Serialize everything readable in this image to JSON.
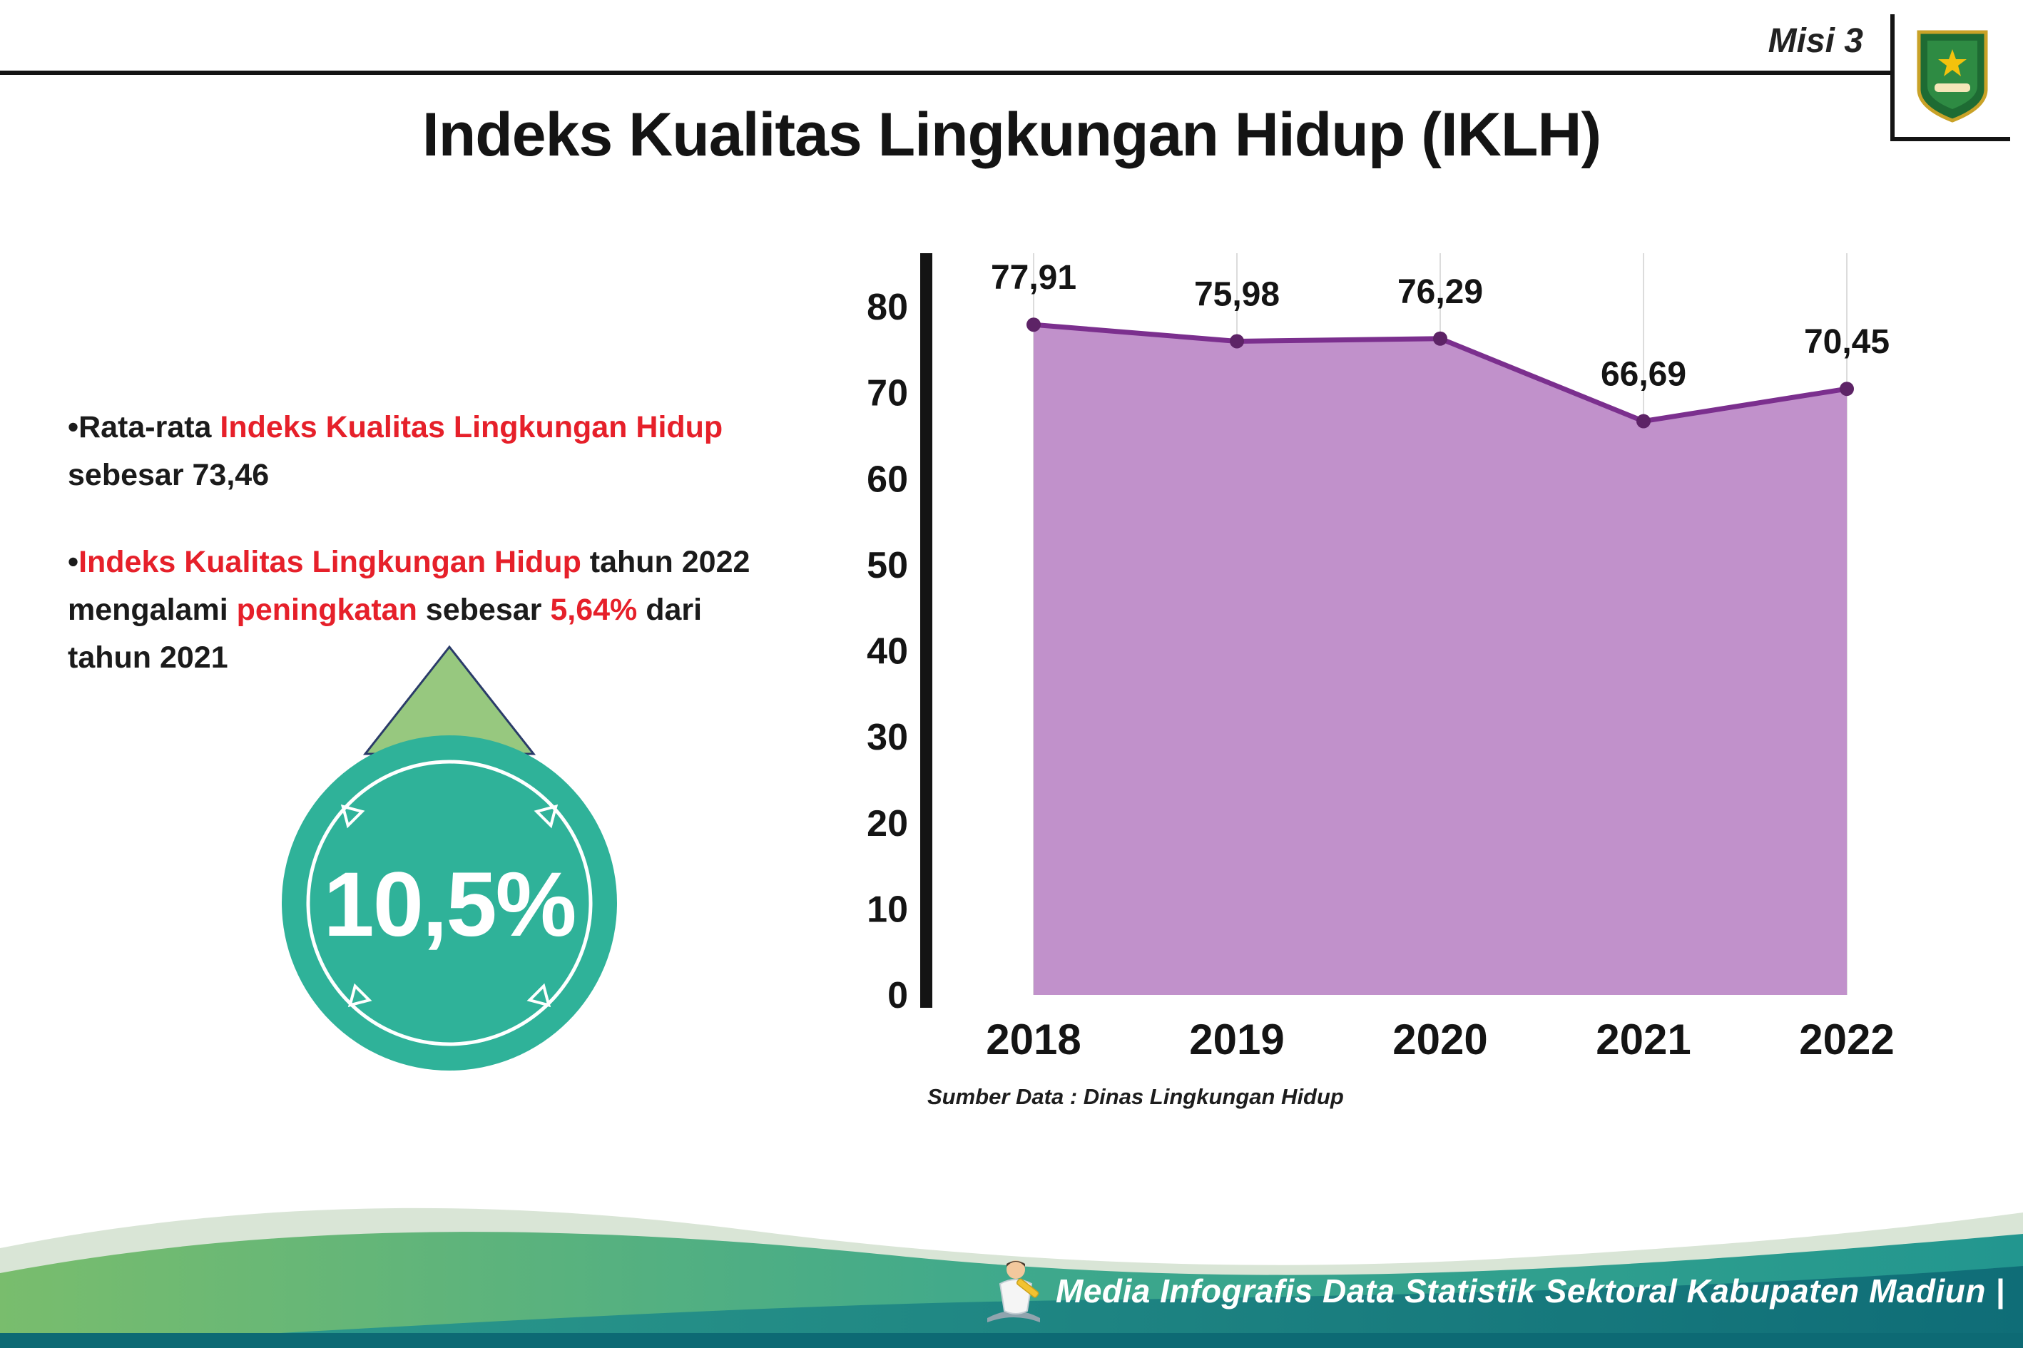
{
  "palette": {
    "accent_red": "#e6202a",
    "circle_teal": "#2fb299",
    "arrow_green": "#97c87f",
    "area_purple": "#c191cb",
    "line_purple": "#7b2f8e",
    "wave_green": "#79bd6d",
    "wave_teal": "#22968f",
    "wave_dark": "#0d6a74"
  },
  "header": {
    "misi_label": "Misi 3",
    "title": "Indeks Kualitas Lingkungan Hidup (IKLH)"
  },
  "bullets": {
    "b1": {
      "marker": "•",
      "black1": "Rata-rata ",
      "red1": "Indeks Kualitas Lingkungan Hidup",
      "line2": "sebesar 73,46"
    },
    "b2": {
      "marker": "•",
      "red1": "Indeks Kualitas Lingkungan Hidup",
      "black1": " tahun 2022",
      "black2": "mengalami ",
      "red2": "peningkatan",
      "black3": " sebesar ",
      "red3": "5,64%",
      "black4": " dari",
      "line3": "tahun 2021"
    }
  },
  "badge": {
    "value": "10,5%"
  },
  "chart_data": {
    "type": "area",
    "title": "Indeks Kualitas Lingkungan Hidup (IKLH)",
    "x": [
      "2018",
      "2019",
      "2020",
      "2021",
      "2022"
    ],
    "values": [
      77.91,
      75.98,
      76.29,
      66.69,
      70.45
    ],
    "value_labels": [
      "77,91",
      "75,98",
      "76,29",
      "66,69",
      "70,45"
    ],
    "ylim": [
      0,
      80
    ],
    "yticks": [
      0,
      10,
      20,
      30,
      40,
      50,
      60,
      70,
      80
    ],
    "grid": "vertical-light",
    "legend": "none",
    "source": "Sumber Data : Dinas Lingkungan Hidup"
  },
  "footer": {
    "caption": "Media Infografis Data Statistik Sektoral Kabupaten Madiun |"
  }
}
